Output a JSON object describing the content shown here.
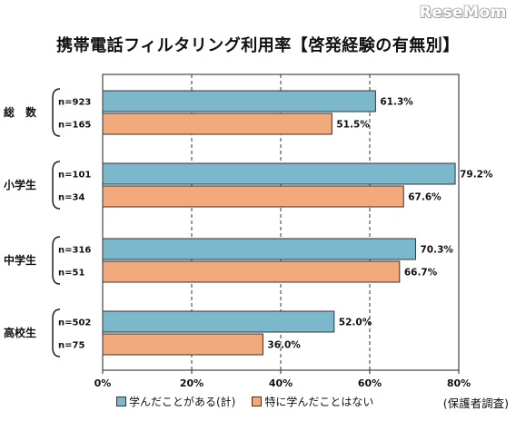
{
  "watermark": "ReseMom",
  "chart_data": {
    "type": "bar",
    "orientation": "horizontal",
    "title": "携帯電話フィルタリング利用率【啓発経験の有無別】",
    "source": "(保護者調査)",
    "categories": [
      "総　数",
      "小学生",
      "中学生",
      "高校生"
    ],
    "series": [
      {
        "name": "学んだことがある(計)",
        "color": "#7cb8cc",
        "values": [
          61.3,
          79.2,
          70.3,
          52.0
        ],
        "labels": [
          "61.3%",
          "79.2%",
          "70.3%",
          "52.0%"
        ],
        "n": [
          "n=923",
          "n=101",
          "n=316",
          "n=502"
        ]
      },
      {
        "name": "特に学んだことはない",
        "color": "#f2a97c",
        "values": [
          51.5,
          67.6,
          66.7,
          36.0
        ],
        "labels": [
          "51.5%",
          "67.6%",
          "66.7%",
          "36.0%"
        ],
        "n": [
          "n=165",
          "n=34",
          "n=51",
          "n=75"
        ]
      }
    ],
    "xlim": [
      0,
      80
    ],
    "xticks": [
      "0%",
      "20%",
      "40%",
      "60%",
      "80%"
    ],
    "grid": true,
    "legend_position": "bottom"
  }
}
